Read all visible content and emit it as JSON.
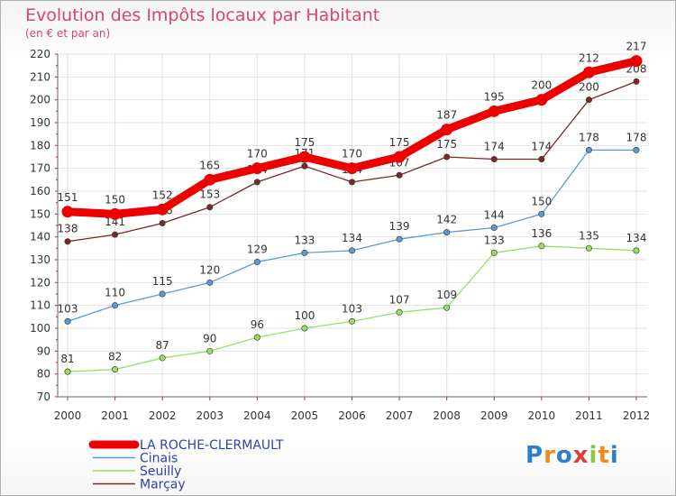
{
  "title": "Evolution des Impôts locaux par Habitant",
  "subtitle": "(en € et par an)",
  "logo": "Proxiti",
  "chart_data": {
    "type": "line",
    "title": "Evolution des Impôts locaux par Habitant",
    "subtitle": "(en € et par an)",
    "xlabel": "",
    "ylabel": "",
    "ylim": [
      70,
      220
    ],
    "yticks": [
      70,
      80,
      90,
      100,
      110,
      120,
      130,
      140,
      150,
      160,
      170,
      180,
      190,
      200,
      210,
      220
    ],
    "x": [
      "2000",
      "2001",
      "2002",
      "2003",
      "2004",
      "2005",
      "2006",
      "2007",
      "2008",
      "2009",
      "2010",
      "2011",
      "2012"
    ],
    "legend_position": "bottom-left",
    "series": [
      {
        "name": "LA ROCHE-CLERMAULT",
        "color": "#ee0000",
        "values": [
          151,
          150,
          152,
          165,
          170,
          175,
          170,
          175,
          187,
          195,
          200,
          212,
          217
        ]
      },
      {
        "name": "Cinais",
        "color": "#5b9bd5",
        "values": [
          103,
          110,
          115,
          120,
          129,
          133,
          134,
          139,
          142,
          144,
          150,
          178,
          178
        ]
      },
      {
        "name": "Seuilly",
        "color": "#99dd66",
        "values": [
          81,
          82,
          87,
          90,
          96,
          100,
          103,
          107,
          109,
          133,
          136,
          135,
          134
        ]
      },
      {
        "name": "Marçay",
        "color": "#7a2828",
        "values": [
          138,
          141,
          146,
          153,
          164,
          171,
          164,
          167,
          175,
          174,
          174,
          200,
          208
        ]
      }
    ]
  }
}
